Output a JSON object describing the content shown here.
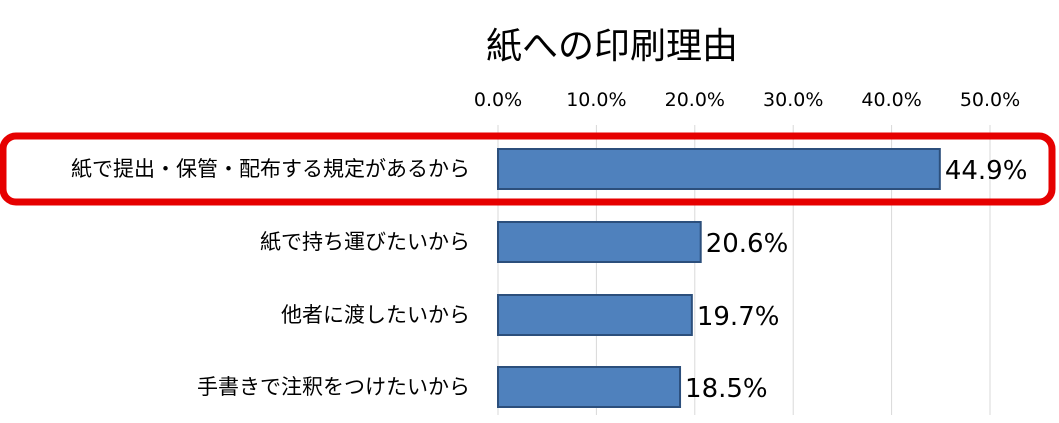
{
  "chart_data": {
    "type": "bar",
    "orientation": "horizontal",
    "title": "紙への印刷理由",
    "categories": [
      "紙で提出・保管・配布する規定があるから",
      "紙で持ち運びたいから",
      "他者に渡したいから",
      "手書きで注釈をつけたいから"
    ],
    "values": [
      44.9,
      20.6,
      19.7,
      18.5
    ],
    "value_labels": [
      "44.9%",
      "20.6%",
      "19.7%",
      "18.5%"
    ],
    "x_ticks": [
      "0.0%",
      "10.0%",
      "20.0%",
      "30.0%",
      "40.0%",
      "50.0%"
    ],
    "xlim": [
      0,
      50
    ],
    "xaxis_position": "top",
    "grid": true,
    "highlighted_category_index": 0,
    "colors": {
      "bar_fill": "#4f81bd",
      "bar_edge": "#2c4f7c",
      "highlight": "#e60000",
      "grid": "#d9d9d9"
    }
  }
}
